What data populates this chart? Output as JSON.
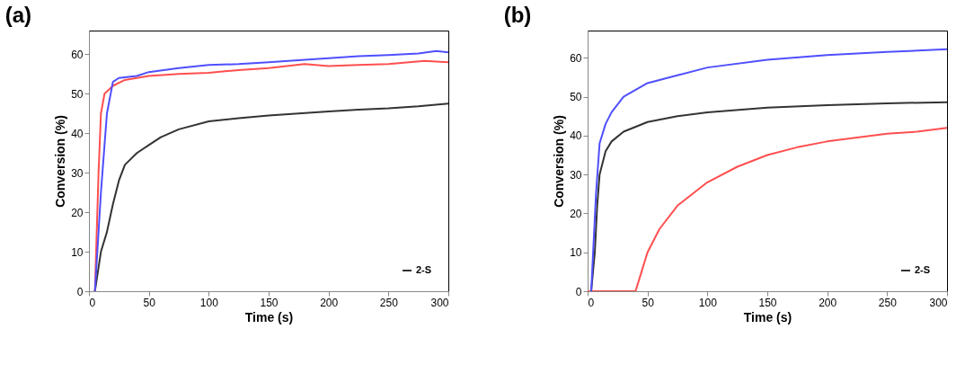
{
  "chart_data": [
    {
      "type": "line",
      "title": "(a)",
      "xlabel": "Time (s)",
      "ylabel": "Conversion (%)",
      "xlim": [
        0,
        300
      ],
      "xticks": [
        0,
        50,
        100,
        150,
        200,
        250,
        300
      ],
      "ylim": [
        0,
        66
      ],
      "yticks": [
        0,
        10,
        20,
        30,
        40,
        50,
        60
      ],
      "grid": false,
      "legend": "bottom right",
      "series": [
        {
          "name": "2-S",
          "color": "#333333",
          "x": [
            5,
            10,
            15,
            20,
            25,
            30,
            40,
            50,
            60,
            75,
            100,
            125,
            150,
            175,
            200,
            225,
            250,
            275,
            300
          ],
          "values": [
            0,
            10,
            15,
            22,
            28,
            32,
            35,
            37,
            39,
            41,
            43,
            43.8,
            44.5,
            45,
            45.5,
            46,
            46.3,
            46.8,
            47.5
          ]
        },
        {
          "color": "#ff4f4f",
          "x": [
            5,
            8,
            10,
            13,
            20,
            30,
            50,
            75,
            100,
            125,
            150,
            180,
            200,
            225,
            250,
            280,
            300
          ],
          "values": [
            0,
            30,
            45,
            50,
            52,
            53.5,
            54.5,
            55,
            55.3,
            56,
            56.5,
            57.5,
            57,
            57.3,
            57.5,
            58.3,
            58
          ]
        },
        {
          "color": "#4f4fff",
          "x": [
            5,
            10,
            15,
            20,
            25,
            40,
            50,
            75,
            100,
            125,
            150,
            175,
            200,
            225,
            250,
            275,
            290,
            300
          ],
          "values": [
            0,
            25,
            45,
            53,
            54,
            54.5,
            55.5,
            56.5,
            57.3,
            57.5,
            58,
            58.5,
            59,
            59.5,
            59.8,
            60.2,
            60.8,
            60.5
          ]
        }
      ]
    },
    {
      "type": "line",
      "title": "(b)",
      "xlabel": "Time (s)",
      "ylabel": "Conversion (%)",
      "xlim": [
        0,
        300
      ],
      "xticks": [
        0,
        50,
        100,
        150,
        200,
        250,
        300
      ],
      "ylim": [
        0,
        67
      ],
      "yticks": [
        0,
        10,
        20,
        30,
        40,
        50,
        60
      ],
      "grid": false,
      "legend": "bottom right",
      "series": [
        {
          "name": "2-S",
          "color": "#333333",
          "x": [
            3,
            6,
            8,
            10,
            15,
            20,
            30,
            50,
            75,
            100,
            150,
            200,
            250,
            300
          ],
          "values": [
            0,
            10,
            22,
            30,
            36,
            38.5,
            41,
            43.5,
            45,
            46,
            47.2,
            47.8,
            48.3,
            48.6
          ]
        },
        {
          "color": "#ff4f4f",
          "x": [
            0,
            20,
            40,
            45,
            50,
            60,
            75,
            100,
            125,
            150,
            175,
            200,
            225,
            250,
            275,
            300
          ],
          "values": [
            0,
            0,
            0,
            5,
            10,
            16,
            22,
            28,
            32,
            35,
            37,
            38.5,
            39.5,
            40.5,
            41,
            42
          ]
        },
        {
          "color": "#4f4fff",
          "x": [
            3,
            7,
            10,
            15,
            20,
            30,
            50,
            75,
            100,
            150,
            200,
            250,
            300
          ],
          "values": [
            0,
            25,
            38,
            43,
            46,
            50,
            53.5,
            55.5,
            57.5,
            59.5,
            60.7,
            61.5,
            62.2
          ]
        }
      ]
    }
  ]
}
